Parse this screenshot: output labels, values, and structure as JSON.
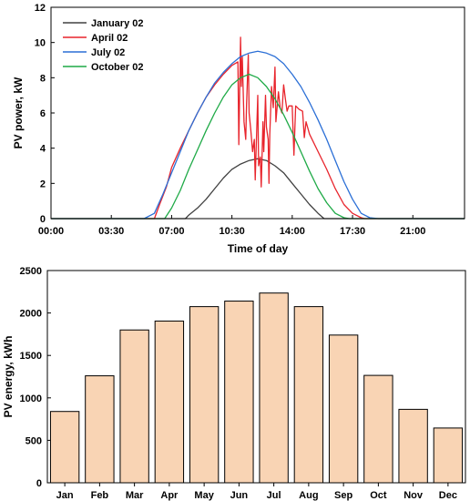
{
  "chart_data": [
    {
      "type": "line",
      "xlabel": "Time of day",
      "ylabel": "PV power, kW",
      "xlim": [
        0,
        24
      ],
      "ylim": [
        0,
        12
      ],
      "x_ticks": [
        0,
        3.5,
        7,
        10.5,
        14,
        17.5,
        21
      ],
      "x_tick_labels": [
        "00:00",
        "03:30",
        "07:00",
        "10:30",
        "14:00",
        "17:30",
        "21:00"
      ],
      "y_ticks": [
        0,
        2,
        4,
        6,
        8,
        10,
        12
      ],
      "y_tick_labels": [
        "0",
        "2",
        "4",
        "6",
        "8",
        "10",
        "12"
      ],
      "legend_position": "top-left",
      "series": [
        {
          "name": "January 02",
          "color": "#404040",
          "x": [
            0,
            7.8,
            8.0,
            8.5,
            9.0,
            9.5,
            10.0,
            10.5,
            11.0,
            11.5,
            12.0,
            12.5,
            13.0,
            13.5,
            14.0,
            14.5,
            15.0,
            15.5,
            15.85,
            24
          ],
          "y": [
            0,
            0,
            0.2,
            0.6,
            1.1,
            1.7,
            2.3,
            2.8,
            3.1,
            3.3,
            3.4,
            3.3,
            3.0,
            2.6,
            2.0,
            1.4,
            0.8,
            0.3,
            0,
            0
          ]
        },
        {
          "name": "April 02",
          "color": "#e8242c",
          "x": [
            0,
            6.0,
            6.3,
            6.7,
            7.0,
            7.5,
            8.0,
            8.5,
            9.0,
            9.5,
            10.0,
            10.5,
            10.85,
            10.9,
            11.0,
            11.05,
            11.1,
            11.2,
            11.3,
            11.35,
            11.45,
            11.5,
            11.6,
            11.7,
            11.8,
            11.85,
            12.0,
            12.05,
            12.15,
            12.2,
            12.3,
            12.35,
            12.45,
            12.5,
            12.6,
            12.65,
            12.7,
            12.8,
            12.9,
            13.0,
            13.05,
            13.2,
            13.3,
            13.4,
            13.5,
            13.6,
            13.7,
            13.8,
            14.0,
            14.1,
            14.2,
            14.4,
            14.6,
            14.7,
            14.8,
            15.0,
            15.5,
            16.0,
            16.5,
            17.0,
            17.5,
            18.0,
            18.2,
            24
          ],
          "y": [
            0,
            0,
            0.8,
            1.8,
            2.9,
            4.0,
            5.0,
            6.0,
            6.9,
            7.6,
            8.2,
            8.7,
            8.9,
            4.2,
            10.3,
            7.5,
            9.2,
            5.5,
            4.5,
            6.5,
            9.3,
            6.0,
            5.0,
            3.8,
            4.5,
            2.2,
            7.0,
            3.0,
            3.5,
            1.8,
            5.5,
            3.8,
            7.0,
            5.2,
            4.5,
            2.0,
            4.8,
            7.5,
            6.3,
            8.6,
            5.5,
            7.2,
            6.3,
            6.0,
            7.6,
            6.8,
            6.1,
            6.4,
            6.4,
            3.6,
            6.4,
            6.2,
            6.1,
            4.6,
            5.5,
            4.8,
            3.8,
            2.8,
            1.7,
            0.8,
            0.3,
            0.05,
            0,
            0
          ]
        },
        {
          "name": "July 02",
          "color": "#2b6fd6",
          "x": [
            0,
            5.4,
            6.0,
            6.5,
            7.0,
            7.5,
            8.0,
            8.5,
            9.0,
            9.5,
            10.0,
            10.5,
            11.0,
            11.5,
            12.0,
            12.5,
            13.0,
            13.5,
            14.0,
            14.5,
            15.0,
            15.5,
            16.0,
            16.5,
            17.0,
            17.5,
            18.0,
            18.5,
            19.0,
            24
          ],
          "y": [
            0,
            0,
            0.3,
            1.4,
            2.6,
            3.8,
            5.0,
            6.0,
            6.9,
            7.7,
            8.3,
            8.8,
            9.2,
            9.4,
            9.5,
            9.4,
            9.2,
            8.8,
            8.2,
            7.5,
            6.6,
            5.6,
            4.5,
            3.3,
            2.1,
            1.1,
            0.3,
            0.05,
            0,
            0
          ]
        },
        {
          "name": "October 02",
          "color": "#1faa47",
          "x": [
            0,
            6.6,
            7.0,
            7.5,
            8.0,
            8.5,
            9.0,
            9.5,
            10.0,
            10.5,
            11.0,
            11.5,
            12.0,
            12.5,
            13.0,
            13.5,
            14.0,
            14.5,
            15.0,
            15.5,
            16.0,
            16.5,
            17.0,
            17.3,
            24
          ],
          "y": [
            0,
            0,
            0.6,
            1.6,
            2.8,
            3.9,
            5.0,
            6.0,
            6.9,
            7.6,
            8.0,
            8.2,
            8.0,
            7.5,
            6.8,
            5.9,
            4.9,
            3.8,
            2.7,
            1.7,
            0.9,
            0.3,
            0.05,
            0,
            0
          ]
        }
      ]
    },
    {
      "type": "bar",
      "xlabel": "",
      "ylabel": "PV energy, kWh",
      "ylim": [
        0,
        2500
      ],
      "y_ticks": [
        0,
        500,
        1000,
        1500,
        2000,
        2500
      ],
      "y_tick_labels": [
        "0",
        "500",
        "1000",
        "1500",
        "2000",
        "2500"
      ],
      "categories": [
        "Jan",
        "Feb",
        "Mar",
        "Apr",
        "May",
        "Jun",
        "Jul",
        "Aug",
        "Sep",
        "Oct",
        "Nov",
        "Dec"
      ],
      "values": [
        840,
        1260,
        1800,
        1905,
        2075,
        2140,
        2235,
        2075,
        1740,
        1265,
        865,
        645
      ],
      "bar_color": "#f9d4b4",
      "bar_edge_color": "#000000"
    }
  ]
}
